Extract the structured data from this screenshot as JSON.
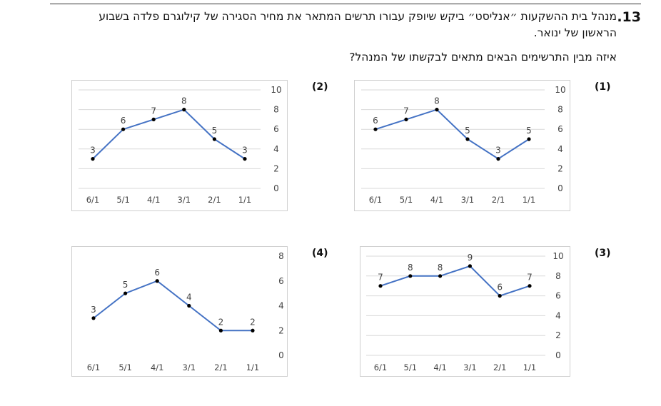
{
  "question": {
    "number": ".13",
    "text": "מנהל בית ההשקעות ״אנליסט״ ביקש שיופק עבורו תרשים המתאר את מחיר הסגירה של קילוגרם פלדה בשבוע הראשון של ינואר.",
    "prompt": "איזה מבין התרשימים הבאים מתאים לבקשתו של המנהל?"
  },
  "options": [
    {
      "label": "(1)"
    },
    {
      "label": "(2)"
    },
    {
      "label": "(3)"
    },
    {
      "label": "(4)"
    }
  ],
  "colors": {
    "line": "#4472c4",
    "marker": "#000000",
    "grid": "#d9d9d9",
    "frame": "#cfcfcf"
  },
  "chart_data": [
    {
      "option": "(1)",
      "type": "line",
      "categories": [
        "6/1",
        "5/1",
        "4/1",
        "3/1",
        "2/1",
        "1/1"
      ],
      "values": [
        6,
        7,
        8,
        5,
        3,
        5
      ],
      "yticks": [
        "10",
        "8",
        "6",
        "4",
        "2",
        "0"
      ],
      "ylim": [
        0,
        10
      ],
      "y_axis_side": "right",
      "grid": true
    },
    {
      "option": "(2)",
      "type": "line",
      "categories": [
        "6/1",
        "5/1",
        "4/1",
        "3/1",
        "2/1",
        "1/1"
      ],
      "values": [
        3,
        6,
        7,
        8,
        5,
        3
      ],
      "yticks": [
        "10",
        "8",
        "6",
        "4",
        "2",
        "0"
      ],
      "ylim": [
        0,
        10
      ],
      "y_axis_side": "right",
      "grid": true
    },
    {
      "option": "(3)",
      "type": "line",
      "categories": [
        "6/1",
        "5/1",
        "4/1",
        "3/1",
        "2/1",
        "1/1"
      ],
      "values": [
        7,
        8,
        8,
        9,
        6,
        7
      ],
      "yticks": [
        "10",
        "8",
        "6",
        "4",
        "2",
        "0"
      ],
      "ylim": [
        0,
        10
      ],
      "y_axis_side": "right",
      "grid": true
    },
    {
      "option": "(4)",
      "type": "line",
      "categories": [
        "6/1",
        "5/1",
        "4/1",
        "3/1",
        "2/1",
        "1/1"
      ],
      "values": [
        3,
        5,
        6,
        4,
        2,
        2
      ],
      "yticks": [
        "8",
        "6",
        "4",
        "2",
        "0"
      ],
      "ylim": [
        0,
        8
      ],
      "y_axis_side": "right",
      "grid": false
    }
  ]
}
